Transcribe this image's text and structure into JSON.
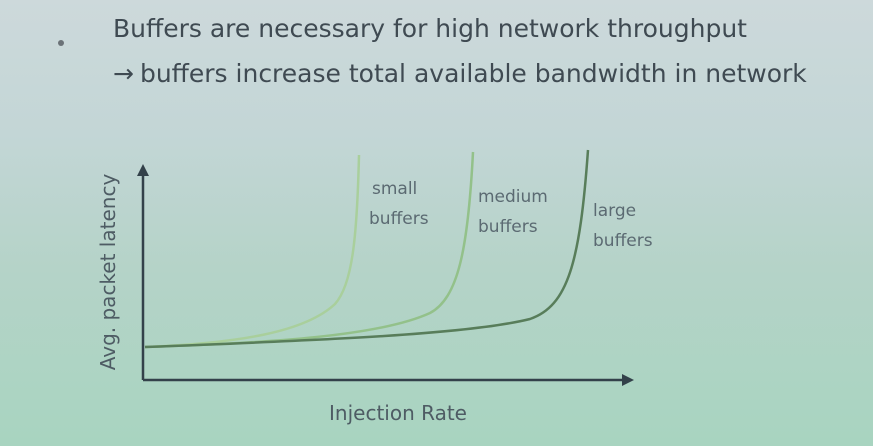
{
  "slide": {
    "bullet": "Buffers are necessary for high network throughput",
    "arrow_glyph": "→",
    "sub_bullet": "buffers increase total available bandwidth in network"
  },
  "diagram": {
    "y_axis_label": "Avg. packet latency",
    "x_axis_label": "Injection Rate",
    "curves": [
      {
        "id": "small",
        "line1": "small",
        "line2": "buffers",
        "color": "#a9cf9c"
      },
      {
        "id": "medium",
        "line1": "medium",
        "line2": "buffers",
        "color": "#93c18a"
      },
      {
        "id": "large",
        "line1": "large",
        "line2": "buffers",
        "color": "#587d5a"
      }
    ]
  }
}
